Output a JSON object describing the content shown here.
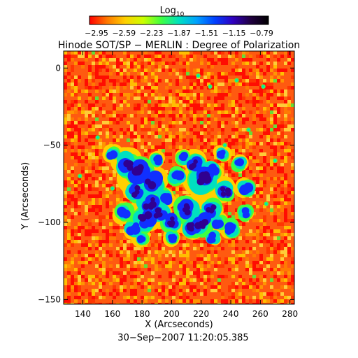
{
  "colorbar": {
    "label_base": "Log",
    "label_sub": "10",
    "ticks": [
      "−2.95",
      "−2.59",
      "−2.23",
      "−1.87",
      "−1.51",
      "−1.15",
      "−0.79"
    ],
    "range": [
      -2.95,
      -0.79
    ],
    "colors": [
      "#ff0000",
      "#ff7a00",
      "#ffd000",
      "#ccff00",
      "#40ff40",
      "#00e0c0",
      "#00a0ff",
      "#0040ff",
      "#3000c0",
      "#200040",
      "#000000"
    ]
  },
  "title": "Hinode SOT/SP − MERLIN : Degree of Polarization",
  "map": {
    "x_axis": {
      "label": "X (Arcseconds)",
      "range": [
        127,
        283
      ],
      "ticks": [
        140,
        160,
        180,
        200,
        220,
        240,
        260,
        280
      ],
      "tick_labels": [
        "140",
        "160",
        "180",
        "200",
        "220",
        "240",
        "260",
        "280"
      ]
    },
    "y_axis": {
      "label": "Y (Arcseconds)",
      "range": [
        -153,
        11
      ],
      "ticks": [
        0,
        -50,
        -100,
        -150
      ],
      "tick_labels": [
        "0",
        "−50",
        "−100",
        "−150"
      ]
    },
    "background_color": "#ff5a10",
    "region_colors": {
      "low": "#ff0000",
      "mid": "#ffd000",
      "green": "#40ff40",
      "cyan": "#00e0c0",
      "blue": "#1030ff",
      "dark": "#300090"
    }
  },
  "timestamp": "30−Sep−2007 11:20:05.385"
}
